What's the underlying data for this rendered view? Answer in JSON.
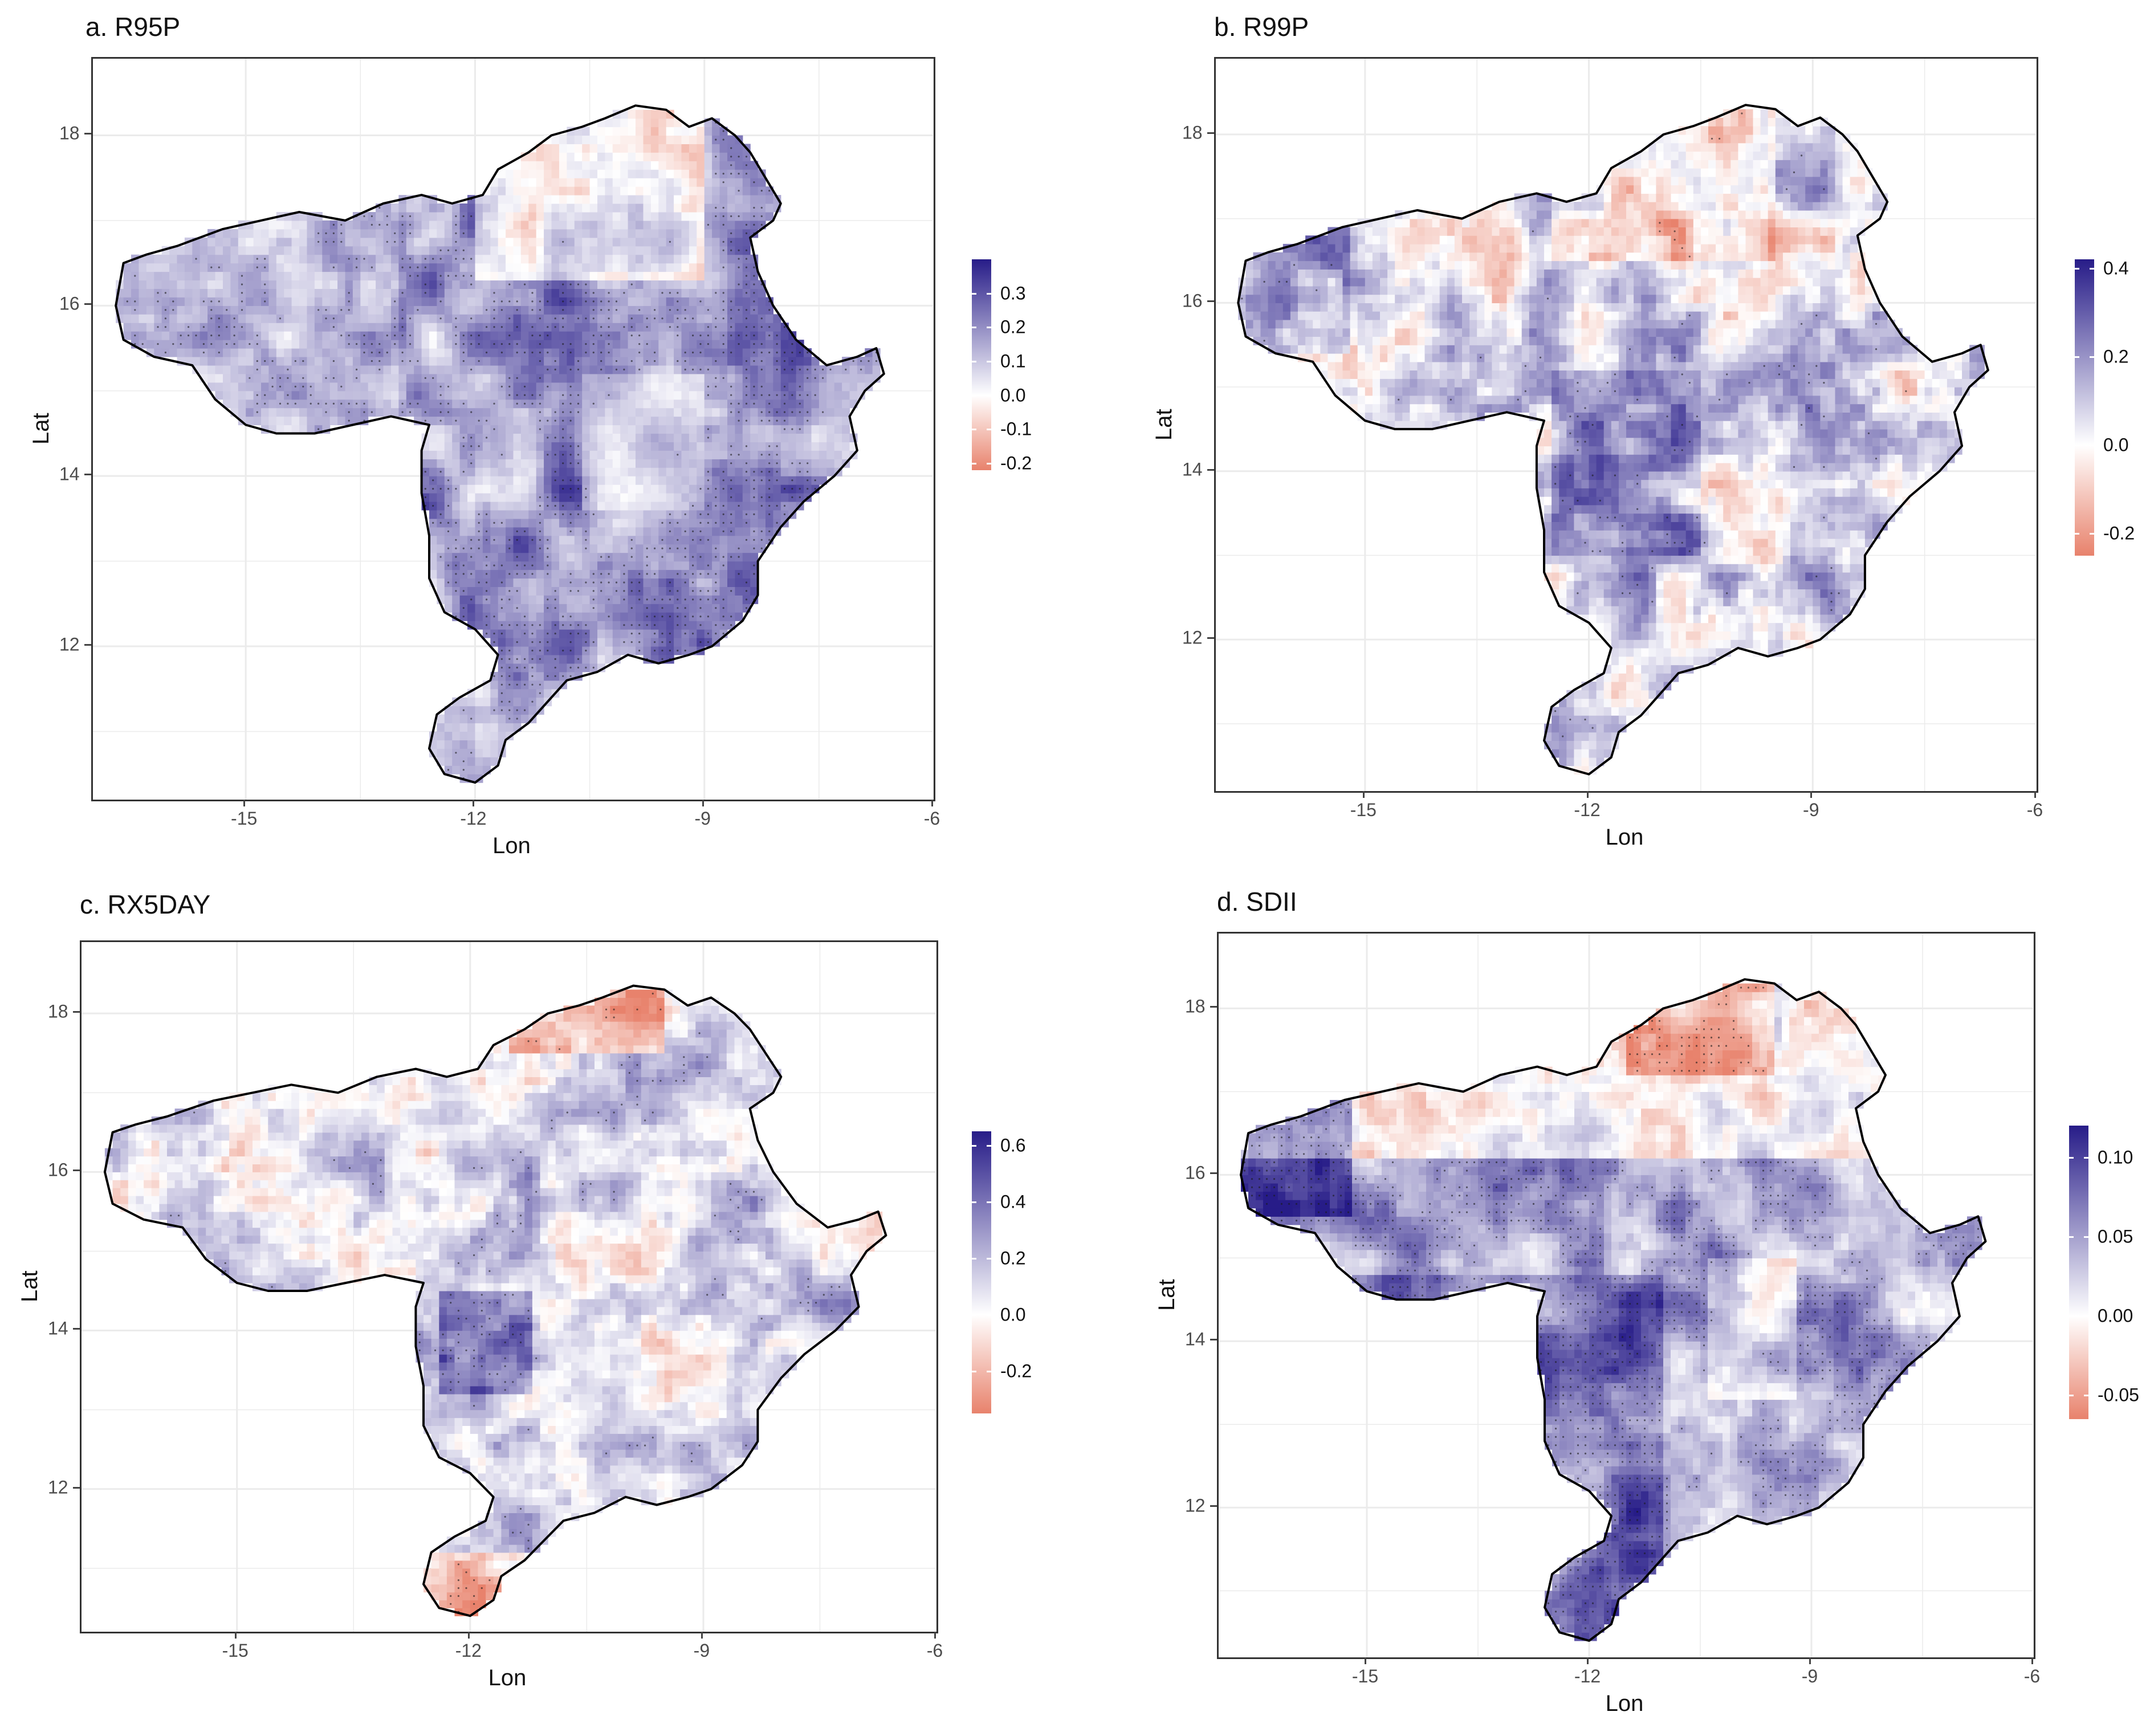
{
  "colors": {
    "negative_end": "#e8826c",
    "zero": "#ffffff",
    "positive_end": "#271c88",
    "boundary": "#000000",
    "grid": "#ebebeb",
    "stipple": "#1a1a1a"
  },
  "chart_data": [
    {
      "type": "heatmap",
      "title": "a. R95P",
      "xlabel": "Lon",
      "ylabel": "Lat",
      "xlim": [
        -17,
        -6
      ],
      "ylim": [
        10.2,
        18.9
      ],
      "x_ticks": [
        "-15",
        "-12",
        "-9",
        "-6"
      ],
      "y_ticks": [
        "12",
        "14",
        "16",
        "18"
      ],
      "legend": {
        "min": -0.22,
        "max": 0.4,
        "labels": [
          "0.3",
          "0.2",
          "0.1",
          "0.0",
          "-0.1",
          "-0.2"
        ],
        "values": [
          0.3,
          0.2,
          0.1,
          0.0,
          -0.1,
          -0.2
        ]
      },
      "pattern": "mostly-positive",
      "stippled": "widespread"
    },
    {
      "type": "heatmap",
      "title": "b. R99P",
      "xlabel": "Lon",
      "ylabel": "Lat",
      "xlim": [
        -17,
        -6
      ],
      "ylim": [
        10.2,
        18.9
      ],
      "x_ticks": [
        "-15",
        "-12",
        "-9",
        "-6"
      ],
      "y_ticks": [
        "12",
        "14",
        "16",
        "18"
      ],
      "legend": {
        "min": -0.25,
        "max": 0.42,
        "labels": [
          "0.4",
          "0.2",
          "0.0",
          "-0.2"
        ],
        "values": [
          0.4,
          0.2,
          0.0,
          -0.2
        ]
      },
      "pattern": "mixed-positive",
      "stippled": "sparse"
    },
    {
      "type": "heatmap",
      "title": "c. RX5DAY",
      "xlabel": "Lon",
      "ylabel": "Lat",
      "xlim": [
        -17,
        -6
      ],
      "ylim": [
        10.2,
        18.9
      ],
      "x_ticks": [
        "-15",
        "-12",
        "-9",
        "-6"
      ],
      "y_ticks": [
        "12",
        "14",
        "16",
        "18"
      ],
      "legend": {
        "min": -0.35,
        "max": 0.65,
        "labels": [
          "0.6",
          "0.4",
          "0.2",
          "0.0",
          "-0.2"
        ],
        "values": [
          0.6,
          0.4,
          0.2,
          0.0,
          -0.2
        ]
      },
      "pattern": "mixed",
      "stippled": "partial"
    },
    {
      "type": "heatmap",
      "title": "d. SDII",
      "xlabel": "Lon",
      "ylabel": "Lat",
      "xlim": [
        -17,
        -6
      ],
      "ylim": [
        10.2,
        18.9
      ],
      "x_ticks": [
        "-15",
        "-12",
        "-9",
        "-6"
      ],
      "y_ticks": [
        "12",
        "14",
        "16",
        "18"
      ],
      "legend": {
        "min": -0.065,
        "max": 0.12,
        "labels": [
          "0.10",
          "0.05",
          "0.00",
          "-0.05"
        ],
        "values": [
          0.1,
          0.05,
          0.0,
          -0.05
        ]
      },
      "pattern": "strong-south-negative-north",
      "stippled": "widespread"
    }
  ]
}
